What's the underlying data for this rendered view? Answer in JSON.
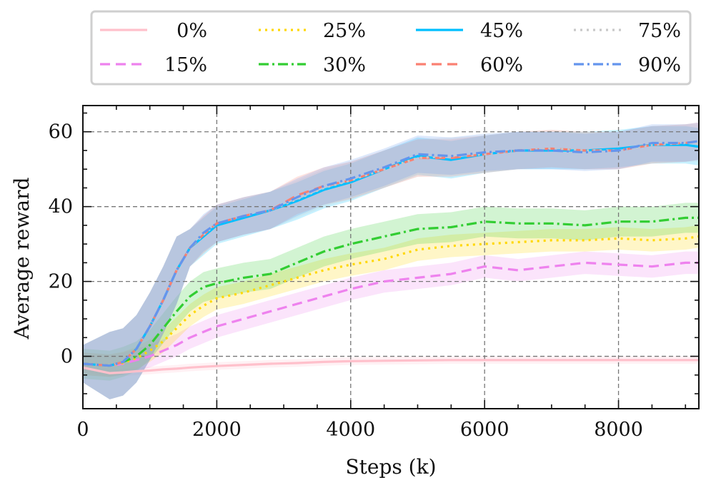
{
  "chart_data": {
    "type": "line",
    "title": "",
    "xlabel": "Steps (k)",
    "ylabel": "Average reward",
    "xlim": [
      0,
      9200
    ],
    "ylim": [
      -14,
      67
    ],
    "xticks": [
      0,
      2000,
      4000,
      6000,
      8000
    ],
    "xtick_labels": [
      "0",
      "2000",
      "4000",
      "6000",
      "8000"
    ],
    "yticks": [
      0,
      20,
      40,
      60
    ],
    "ytick_labels": [
      "0",
      "20",
      "40",
      "60"
    ],
    "grid": "dashed",
    "legend_position": "top",
    "x": [
      0,
      400,
      600,
      800,
      1000,
      1200,
      1400,
      1600,
      1800,
      2000,
      2400,
      2800,
      3200,
      3600,
      4000,
      4500,
      5000,
      5500,
      6000,
      6500,
      7000,
      7500,
      8000,
      8500,
      9000,
      9200
    ],
    "series": [
      {
        "name": "0%",
        "color": "#FFC0CB",
        "dash": "solid",
        "band": 1,
        "values": [
          -3,
          -4.5,
          -4.3,
          -4,
          -3.8,
          -3.5,
          -3.3,
          -3,
          -2.8,
          -2.6,
          -2.3,
          -2,
          -1.8,
          -1.5,
          -1.3,
          -1.2,
          -1.1,
          -1,
          -1,
          -1,
          -1,
          -1,
          -1,
          -1,
          -1,
          -1
        ]
      },
      {
        "name": "15%",
        "color": "#EE82EE",
        "dash": "dash",
        "band": 3,
        "values": [
          -2,
          -2.5,
          -2,
          -1,
          0,
          1.5,
          3,
          5,
          6.5,
          8,
          10,
          12,
          14,
          16,
          18,
          20,
          21,
          22,
          24,
          23,
          24,
          25,
          24.5,
          24,
          25,
          25
        ]
      },
      {
        "name": "25%",
        "color": "#FFD700",
        "dash": "dot",
        "band": 3,
        "values": [
          -2,
          -2.5,
          -1.8,
          -0.5,
          1.5,
          4,
          7.5,
          11,
          13.5,
          15.5,
          17,
          19,
          21,
          23,
          24.5,
          26,
          28.5,
          29.5,
          30,
          30.5,
          31,
          31,
          31.5,
          31,
          31.5,
          32
        ]
      },
      {
        "name": "30%",
        "color": "#32CD32",
        "dash": "dashdot",
        "band": 4,
        "values": [
          -2,
          -2.5,
          -1.5,
          0,
          3,
          7.5,
          12,
          16,
          18.5,
          19.5,
          21,
          22,
          25,
          28,
          30,
          32,
          34,
          34.5,
          36,
          35.5,
          35.5,
          35,
          36,
          36,
          37,
          37
        ]
      },
      {
        "name": "45%",
        "color": "#00BFFF",
        "dash": "solid",
        "band": 5,
        "values": [
          -2,
          -2.5,
          -1.5,
          2,
          8,
          15,
          23,
          29,
          32,
          35,
          37,
          39,
          41.5,
          44.5,
          46.5,
          50,
          53.5,
          52.5,
          54,
          55,
          55,
          55,
          55.5,
          56.5,
          56.5,
          56
        ]
      },
      {
        "name": "60%",
        "color": "#FA8072",
        "dash": "dash",
        "band": 5,
        "values": [
          -2,
          -2.5,
          -1.5,
          2,
          8,
          15,
          23,
          29,
          32.5,
          35.5,
          37.5,
          39,
          43,
          45.5,
          47,
          50,
          53,
          53,
          54,
          55,
          55.5,
          55,
          55,
          56.5,
          57,
          57.5
        ]
      },
      {
        "name": "75%",
        "color": "#C8C8C8",
        "dash": "dot",
        "band": 5,
        "values": [
          -2,
          -2.5,
          -1.5,
          2,
          8,
          15,
          23,
          29,
          32.5,
          35.5,
          37.5,
          39,
          42,
          45,
          47,
          50,
          53,
          53.5,
          54,
          55,
          55.5,
          55,
          55,
          56.5,
          57,
          57
        ]
      },
      {
        "name": "90%",
        "color": "#6495ED",
        "dash": "dashdot",
        "band": 5,
        "values": [
          -2,
          -2.5,
          -1.5,
          2,
          8,
          15,
          23,
          29,
          33,
          35.5,
          37.5,
          39,
          42.5,
          45.5,
          47.5,
          50.5,
          54,
          53.5,
          54.5,
          55,
          55,
          54.5,
          55,
          57,
          57,
          57.5
        ]
      }
    ]
  }
}
